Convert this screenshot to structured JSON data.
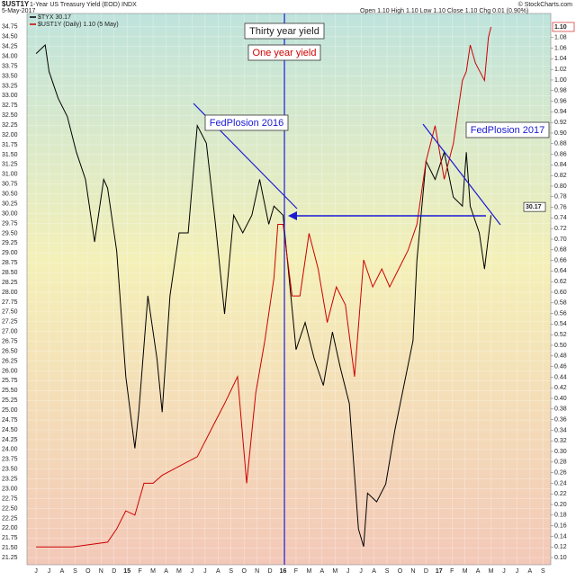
{
  "header": {
    "symbol": "$UST1Y",
    "description": "1-Year US Treasury Yield (EOD) INDX",
    "date": "5-May-2017",
    "quote": "Open 1.10  High 1.10  Low 1.10  Close 1.10  Chg 0.01 (0.90%)",
    "source": "© StockCharts.com"
  },
  "chart_data": {
    "type": "line",
    "annotations": [
      "Thirty year yield",
      "One year yield",
      "FedPlosion 2016",
      "FedPlosion 2017"
    ],
    "xlim": [
      -0.7,
      39.6
    ],
    "xticks": [
      {
        "value": 0,
        "label": "J"
      },
      {
        "value": 1,
        "label": "J"
      },
      {
        "value": 2,
        "label": "A"
      },
      {
        "value": 3,
        "label": "S"
      },
      {
        "value": 4,
        "label": "O"
      },
      {
        "value": 5,
        "label": "N"
      },
      {
        "value": 6,
        "label": "D"
      },
      {
        "value": 7,
        "label": "15"
      },
      {
        "value": 8,
        "label": "F"
      },
      {
        "value": 9,
        "label": "M"
      },
      {
        "value": 10,
        "label": "A"
      },
      {
        "value": 11,
        "label": "M"
      },
      {
        "value": 12,
        "label": "J"
      },
      {
        "value": 13,
        "label": "J"
      },
      {
        "value": 14,
        "label": "A"
      },
      {
        "value": 15,
        "label": "S"
      },
      {
        "value": 16,
        "label": "O"
      },
      {
        "value": 17,
        "label": "N"
      },
      {
        "value": 18,
        "label": "D"
      },
      {
        "value": 19,
        "label": "16"
      },
      {
        "value": 20,
        "label": "F"
      },
      {
        "value": 21,
        "label": "M"
      },
      {
        "value": 22,
        "label": "A"
      },
      {
        "value": 23,
        "label": "M"
      },
      {
        "value": 24,
        "label": "J"
      },
      {
        "value": 25,
        "label": "J"
      },
      {
        "value": 26,
        "label": "A"
      },
      {
        "value": 27,
        "label": "S"
      },
      {
        "value": 28,
        "label": "O"
      },
      {
        "value": 29,
        "label": "N"
      },
      {
        "value": 30,
        "label": "D"
      },
      {
        "value": 31,
        "label": "17"
      },
      {
        "value": 32,
        "label": "F"
      },
      {
        "value": 33,
        "label": "M"
      },
      {
        "value": 34,
        "label": "A"
      },
      {
        "value": 35,
        "label": "M"
      },
      {
        "value": 36,
        "label": "J"
      },
      {
        "value": 37,
        "label": "J"
      },
      {
        "value": 38,
        "label": "A"
      },
      {
        "value": 39,
        "label": "S"
      }
    ],
    "ylim": [
      21.07,
      34.93
    ],
    "yticks": [
      21.25,
      {
        "value": 21.5,
        "label": "21.50"
      },
      21.75,
      {
        "value": 22,
        "label": "22.00"
      },
      22.25,
      {
        "value": 22.5,
        "label": "22.50"
      },
      22.75,
      {
        "value": 23,
        "label": "23.00"
      },
      23.25,
      {
        "value": 23.5,
        "label": "23.50"
      },
      23.75,
      {
        "value": 24,
        "label": "24.00"
      },
      24.25,
      {
        "value": 24.5,
        "label": "24.50"
      },
      24.75,
      {
        "value": 25,
        "label": "25.00"
      },
      25.25,
      {
        "value": 25.5,
        "label": "25.50"
      },
      25.75,
      {
        "value": 26,
        "label": "26.00"
      },
      26.25,
      {
        "value": 26.5,
        "label": "26.50"
      },
      26.75,
      {
        "value": 27,
        "label": "27.00"
      },
      27.25,
      {
        "value": 27.5,
        "label": "27.50"
      },
      27.75,
      {
        "value": 28,
        "label": "28.00"
      },
      28.25,
      {
        "value": 28.5,
        "label": "28.50"
      },
      28.75,
      {
        "value": 29,
        "label": "29.00"
      },
      29.25,
      {
        "value": 29.5,
        "label": "29.50"
      },
      29.75,
      {
        "value": 30,
        "label": "30.00"
      },
      30.25,
      {
        "value": 30.5,
        "label": "30.50"
      },
      30.75,
      {
        "value": 31,
        "label": "31.00"
      },
      31.25,
      {
        "value": 31.5,
        "label": "31.50"
      },
      31.75,
      {
        "value": 32,
        "label": "32.00"
      },
      32.25,
      {
        "value": 32.5,
        "label": "32.50"
      },
      32.75,
      {
        "value": 33,
        "label": "33.00"
      },
      33.25,
      {
        "value": 33.5,
        "label": "33.50"
      },
      33.75,
      {
        "value": 34,
        "label": "34.00"
      },
      34.25,
      {
        "value": 34.5,
        "label": "34.50"
      },
      34.75
    ],
    "y2lim": [
      0.0865,
      1.1135
    ],
    "y2ticks": [
      {
        "value": 0.1,
        "label": "0.10"
      },
      0.12,
      0.14,
      0.16,
      0.18,
      {
        "value": 0.2,
        "label": "0.20"
      },
      0.22,
      0.24,
      0.26,
      0.28,
      {
        "value": 0.3,
        "label": "0.30"
      },
      0.32,
      0.34,
      0.36,
      0.38,
      {
        "value": 0.4,
        "label": "0.40"
      },
      0.42,
      0.44,
      0.46,
      0.48,
      {
        "value": 0.5,
        "label": "0.50"
      },
      0.52,
      0.54,
      0.56,
      0.58,
      {
        "value": 0.6,
        "label": "0.60"
      },
      0.62,
      0.64,
      0.66,
      0.68,
      {
        "value": 0.7,
        "label": "0.70"
      },
      0.72,
      0.74,
      0.76,
      0.78,
      {
        "value": 0.8,
        "label": "0.80"
      },
      0.82,
      0.84,
      0.86,
      0.88,
      {
        "value": 0.9,
        "label": "0.90"
      },
      0.92,
      0.94,
      0.96,
      0.98,
      {
        "value": 1,
        "label": "1.00"
      },
      1.02,
      1.04,
      1.06,
      1.08
    ],
    "series": [
      {
        "name": "$TYX 30.17",
        "color": "#000000",
        "last": {
          "value": 30.17,
          "label": "30.17"
        },
        "x": [
          0,
          0.7,
          1,
          1.7,
          2.4,
          3.1,
          3.8,
          4.5,
          5.2,
          5.5,
          6.2,
          6.9,
          7.6,
          7.9,
          8.6,
          9.3,
          9.7,
          10.3,
          11,
          11.7,
          12.4,
          13.1,
          13.8,
          14.5,
          15.2,
          15.9,
          16.6,
          17.2,
          17.9,
          18.3,
          19,
          19.4,
          20,
          20.7,
          21.4,
          22.1,
          22.8,
          23.4,
          24.1,
          24.8,
          25.2,
          25.5,
          26.2,
          26.9,
          27.6,
          28.3,
          29,
          29.3,
          30,
          30.7,
          31.4,
          32.1,
          32.8,
          33.1,
          33.4,
          34.1,
          34.5,
          35
        ],
        "values": [
          34.07,
          34.29,
          33.61,
          32.93,
          32.47,
          31.56,
          30.87,
          29.28,
          30.87,
          30.65,
          29.05,
          25.86,
          24.03,
          24.95,
          27.91,
          26.31,
          24.95,
          27.91,
          29.51,
          29.51,
          32.24,
          31.79,
          29.73,
          27.45,
          29.96,
          29.51,
          29.96,
          30.87,
          29.73,
          30.19,
          29.96,
          28.59,
          26.54,
          27.23,
          26.31,
          25.63,
          26.99,
          26.09,
          25.17,
          21.98,
          21.53,
          22.89,
          22.67,
          23.12,
          24.49,
          25.63,
          26.77,
          28.82,
          31.33,
          30.87,
          31.56,
          30.42,
          30.19,
          31.56,
          30.19,
          29.51,
          28.59,
          29.96
        ]
      },
      {
        "name": "$UST1Y (Daily) 1.10 (5 May)",
        "color": "#cc0000",
        "axis": "y2",
        "last": {
          "value": 1.1,
          "label": "1.10"
        },
        "x": [
          0,
          2.8,
          5.5,
          6.2,
          6.9,
          7.6,
          8.3,
          9,
          9.7,
          11,
          12.4,
          13.8,
          14.5,
          15.5,
          16.2,
          16.9,
          17.6,
          18.3,
          18.6,
          19,
          19.7,
          20.3,
          21,
          21.7,
          22.4,
          23.1,
          23.8,
          24.5,
          25.2,
          25.9,
          26.6,
          27.2,
          27.9,
          28.6,
          29.3,
          30,
          30.7,
          31.4,
          32.1,
          32.8,
          33.1,
          33.4,
          33.8,
          34.5,
          34.8,
          35
        ],
        "values": [
          0.12,
          0.12,
          0.129,
          0.154,
          0.188,
          0.18,
          0.24,
          0.24,
          0.255,
          0.272,
          0.29,
          0.357,
          0.39,
          0.441,
          0.24,
          0.41,
          0.509,
          0.627,
          0.728,
          0.728,
          0.593,
          0.593,
          0.711,
          0.644,
          0.543,
          0.61,
          0.576,
          0.441,
          0.661,
          0.61,
          0.644,
          0.61,
          0.644,
          0.678,
          0.728,
          0.847,
          0.914,
          0.813,
          0.88,
          0.999,
          1.016,
          1.066,
          1.032,
          0.999,
          1.08,
          1.1
        ]
      }
    ]
  }
}
